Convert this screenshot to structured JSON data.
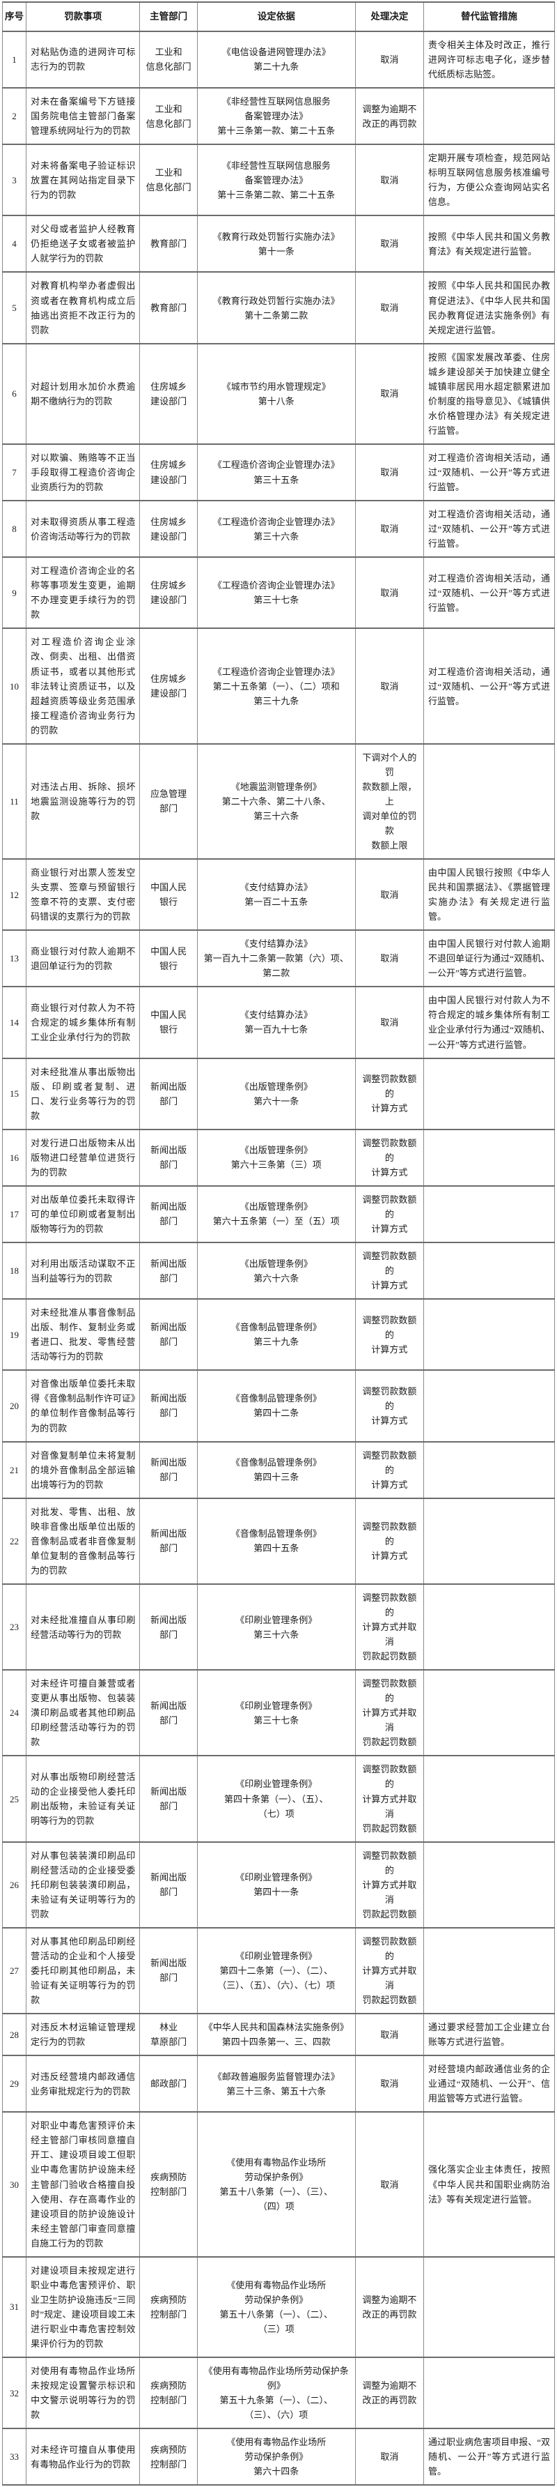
{
  "table": {
    "headers": [
      "序号",
      "罚款事项",
      "主管部门",
      "设定依据",
      "处理决定",
      "替代监管措施"
    ],
    "rows": [
      {
        "no": "1",
        "item": "对粘贴伪造的进网许可标志行为的罚款",
        "dept": "工业和\n信息化部门",
        "basis": "《电信设备进网管理办法》\n第二十九条",
        "decision": "取消",
        "measure": "责令相关主体及时改正，推行进网许可标志电子化，逐步替代纸质标志贴签。"
      },
      {
        "no": "2",
        "item": "对未在备案编号下方链接国务院电信主管部门备案管理系统网址行为的罚款",
        "dept": "工业和\n信息化部门",
        "basis": "《非经营性互联网信息服务\n备案管理办法》\n第十三条第一款、第二十五条",
        "decision": "调整为逾期不\n改正的再罚款",
        "measure": ""
      },
      {
        "no": "3",
        "item": "对未将备案电子验证标识放置在其网站指定目录下行为的罚款",
        "dept": "工业和\n信息化部门",
        "basis": "《非经营性互联网信息服务\n备案管理办法》\n第十三条第二款、第二十五条",
        "decision": "取消",
        "measure": "定期开展专项检查，规范网站标明互联网信息服务核准编号行为，方便公众查询网站实名信息。"
      },
      {
        "no": "4",
        "item": "对父母或者监护人经教育仍拒绝送子女或者被监护人就学行为的罚款",
        "dept": "教育部门",
        "basis": "《教育行政处罚暂行实施办法》\n第十一条",
        "decision": "取消",
        "measure": "按照《中华人民共和国义务教育法》有关规定进行监管。"
      },
      {
        "no": "5",
        "item": "对教育机构举办者虚假出资或者在教育机构成立后抽逃出资拒不改正行为的罚款",
        "dept": "教育部门",
        "basis": "《教育行政处罚暂行实施办法》\n第十二条第二款",
        "decision": "取消",
        "measure": "按照《中华人民共和国民办教育促进法》、《中华人民共和国民办教育促进法实施条例》有关规定进行监管。"
      },
      {
        "no": "6",
        "item": "对超计划用水加价水费逾期不缴纳行为的罚款",
        "dept": "住房城乡\n建设部门",
        "basis": "《城市节约用水管理规定》\n第十八条",
        "decision": "取消",
        "measure": "按照《国家发展改革委、住房城乡建设部关于加快建立健全城镇非居民用水超定额累进加价制度的指导意见》、《城镇供水价格管理办法》有关规定进行监管。"
      },
      {
        "no": "7",
        "item": "对以欺骗、贿赂等不正当手段取得工程造价咨询企业资质行为的罚款",
        "dept": "住房城乡\n建设部门",
        "basis": "《工程造价咨询企业管理办法》\n第三十五条",
        "decision": "取消",
        "measure": "对工程造价咨询相关活动，通过“双随机、一公开”等方式进行监管。"
      },
      {
        "no": "8",
        "item": "对未取得资质从事工程造价咨询活动等行为的罚款",
        "dept": "住房城乡\n建设部门",
        "basis": "《工程造价咨询企业管理办法》\n第三十六条",
        "decision": "取消",
        "measure": "对工程造价咨询相关活动，通过“双随机、一公开”等方式进行监管。"
      },
      {
        "no": "9",
        "item": "对工程造价咨询企业的名称等事项发生变更，逾期不办理变更手续行为的罚款",
        "dept": "住房城乡\n建设部门",
        "basis": "《工程造价咨询企业管理办法》\n第三十七条",
        "decision": "取消",
        "measure": "对工程造价咨询相关活动，通过“双随机、一公开”等方式进行监管。"
      },
      {
        "no": "10",
        "item": "对工程造价咨询企业涂改、倒卖、出租、出借资质证书，或者以其他形式非法转让资质证书，以及超越资质等级业务范围承接工程造价咨询业务行为的罚款",
        "dept": "住房城乡\n建设部门",
        "basis": "《工程造价咨询企业管理办法》\n第二十五条第（一）、（二）项和\n第三十九条",
        "decision": "取消",
        "measure": "对工程造价咨询相关活动，通过“双随机、一公开”等方式进行监管。"
      },
      {
        "no": "11",
        "item": "对违法占用、拆除、损坏地震监测设施等行为的罚款",
        "dept": "应急管理\n部门",
        "basis": "《地震监测管理条例》\n第二十六条、第二十八条、\n第三十六条",
        "decision": "下调对个人的罚\n款数额上限，上\n调对单位的罚款\n数额上限",
        "measure": ""
      },
      {
        "no": "12",
        "item": "商业银行对出票人签发空头支票、签章与预留银行签章不符的支票、支付密码错误的支票行为的罚款",
        "dept": "中国人民\n银行",
        "basis": "《支付结算办法》\n第一百二十五条",
        "decision": "取消",
        "measure": "由中国人民银行按照《中华人民共和国票据法》、《票据管理实施办法》有关规定进行监管。"
      },
      {
        "no": "13",
        "item": "商业银行对付款人逾期不退回单证行为的罚款",
        "dept": "中国人民\n银行",
        "basis": "《支付结算办法》\n第一百九十二条第一款第（六）项、\n第二款",
        "decision": "取消",
        "measure": "由中国人民银行对付款人逾期不退回单证行为通过“双随机、一公开”等方式进行监管。"
      },
      {
        "no": "14",
        "item": "商业银行对付款人为不符合规定的城乡集体所有制工业企业承付行为的罚款",
        "dept": "中国人民\n银行",
        "basis": "《支付结算办法》\n第一百九十七条",
        "decision": "取消",
        "measure": "由中国人民银行对付款人为不符合规定的城乡集体所有制工业企业承付行为通过“双随机、一公开”等方式进行监管。"
      },
      {
        "no": "15",
        "item": "对未经批准从事出版物出版、印刷或者复制、进口、发行业务等行为的罚款",
        "dept": "新闻出版\n部门",
        "basis": "《出版管理条例》\n第六十一条",
        "decision": "调整罚款数额的\n计算方式",
        "measure": ""
      },
      {
        "no": "16",
        "item": "对发行进口出版物未从出版物进口经营单位进货行为的罚款",
        "dept": "新闻出版\n部门",
        "basis": "《出版管理条例》\n第六十三条第（三）项",
        "decision": "调整罚款数额的\n计算方式",
        "measure": ""
      },
      {
        "no": "17",
        "item": "对出版单位委托未取得许可的单位印刷或者复制出版物等行为的罚款",
        "dept": "新闻出版\n部门",
        "basis": "《出版管理条例》\n第六十五条第（一）至（五）项",
        "decision": "调整罚款数额的\n计算方式",
        "measure": ""
      },
      {
        "no": "18",
        "item": "对利用出版活动谋取不正当利益等行为的罚款",
        "dept": "新闻出版\n部门",
        "basis": "《出版管理条例》\n第六十六条",
        "decision": "调整罚款数额的\n计算方式",
        "measure": ""
      },
      {
        "no": "19",
        "item": "对未经批准从事音像制品出版、制作、复制业务或者进口、批发、零售经营活动等行为的罚款",
        "dept": "新闻出版\n部门",
        "basis": "《音像制品管理条例》\n第三十九条",
        "decision": "调整罚款数额的\n计算方式",
        "measure": ""
      },
      {
        "no": "20",
        "item": "对音像出版单位委托未取得《音像制品制作许可证》的单位制作音像制品等行为的罚款",
        "dept": "新闻出版\n部门",
        "basis": "《音像制品管理条例》\n第四十二条",
        "decision": "调整罚款数额的\n计算方式",
        "measure": ""
      },
      {
        "no": "21",
        "item": "对音像复制单位未将复制的境外音像制品全部运输出境等行为的罚款",
        "dept": "新闻出版\n部门",
        "basis": "《音像制品管理条例》\n第四十三条",
        "decision": "调整罚款数额的\n计算方式",
        "measure": ""
      },
      {
        "no": "22",
        "item": "对批发、零售、出租、放映非音像出版单位出版的音像制品或者非音像复制单位复制的音像制品等行为的罚款",
        "dept": "新闻出版\n部门",
        "basis": "《音像制品管理条例》\n第四十五条",
        "decision": "调整罚款数额的\n计算方式",
        "measure": ""
      },
      {
        "no": "23",
        "item": "对未经批准擅自从事印刷经营活动等行为的罚款",
        "dept": "新闻出版\n部门",
        "basis": "《印刷业管理条例》\n第三十六条",
        "decision": "调整罚款数额的\n计算方式并取消\n罚款起罚数额",
        "measure": ""
      },
      {
        "no": "24",
        "item": "对未经许可擅自兼营或者变更从事出版物、包装装潢印刷品或者其他印刷品印刷经营活动等行为的罚款",
        "dept": "新闻出版\n部门",
        "basis": "《印刷业管理条例》\n第三十七条",
        "decision": "调整罚款数额的\n计算方式并取消\n罚款起罚数额",
        "measure": ""
      },
      {
        "no": "25",
        "item": "对从事出版物印刷经营活动的企业接受他人委托印刷出版物，未验证有关证明等行为的罚款",
        "dept": "新闻出版\n部门",
        "basis": "《印刷业管理条例》\n第四十条第（一）、（五）、\n（七）项",
        "decision": "调整罚款数额的\n计算方式并取消\n罚款起罚数额",
        "measure": ""
      },
      {
        "no": "26",
        "item": "对从事包装装潢印刷品印刷经营活动的企业接受委托印刷包装装潢印刷品，未验证有关证明等行为的罚款",
        "dept": "新闻出版\n部门",
        "basis": "《印刷业管理条例》\n第四十一条",
        "decision": "调整罚款数额的\n计算方式并取消\n罚款起罚数额",
        "measure": ""
      },
      {
        "no": "27",
        "item": "对从事其他印刷品印刷经营活动的企业和个人接受委托印刷其他印刷品，未验证有关证明等行为的罚款",
        "dept": "新闻出版\n部门",
        "basis": "《印刷业管理条例》\n第四十二条第（一）、（二）、\n（三）、（五）、（六）、（七）项",
        "decision": "调整罚款数额的\n计算方式并取消\n罚款起罚数额",
        "measure": ""
      },
      {
        "no": "28",
        "item": "对违反木材运输证管理规定行为的罚款",
        "dept": "林业\n草原部门",
        "basis": "《中华人民共和国森林法实施条例》\n第四十四条第一、三、四款",
        "decision": "取消",
        "measure": "通过要求经营加工企业建立台账等方式进行监管。"
      },
      {
        "no": "29",
        "item": "对违反经营境内邮政通信业务审批规定行为的罚款",
        "dept": "邮政部门",
        "basis": "《邮政普遍服务监督管理办法》\n第三十三条、第五十六条",
        "decision": "取消",
        "measure": "对经营境内邮政通信业务的企业通过“双随机、一公开”、信用监管等方式进行监管。"
      },
      {
        "no": "30",
        "item": "对职业中毒危害预评价未经主管部门审核同意擅自开工、建设项目竣工但职业中毒危害防护设施未经主管部门验收合格擅自投入使用、存在高毒作业的建设项目的防护设施设计未经主管部门审查同意擅自施工行为的罚款",
        "dept": "疾病预防\n控制部门",
        "basis": "《使用有毒物品作业场所\n劳动保护条例》\n第五十八条第（一）、（三）、\n（四）项",
        "decision": "取消",
        "measure": "强化落实企业主体责任，按照《中华人民共和国职业病防治法》等有关规定进行监管。"
      },
      {
        "no": "31",
        "item": "对建设项目未按规定进行职业中毒危害预评价、职业卫生防护设施违反“三同时”规定、建设项目竣工未进行职业中毒危害控制效果评价行为的罚款",
        "dept": "疾病预防\n控制部门",
        "basis": "《使用有毒物品作业场所\n劳动保护条例》\n第五十八条第（一）、（二）、\n（三）项",
        "decision": "调整为逾期不\n改正的再罚款",
        "measure": ""
      },
      {
        "no": "32",
        "item": "对使用有毒物品作业场所未按规定设置警示标识和中文警示说明等行为的罚款",
        "dept": "疾病预防\n控制部门",
        "basis": "《使用有毒物品作业场所劳动保护条例》\n第五十九条第（一）、（二）、\n（三）、（六）项",
        "decision": "调整为逾期不\n改正的再罚款",
        "measure": ""
      },
      {
        "no": "33",
        "item": "对未经许可擅自从事使用有毒物品作业行为的罚款",
        "dept": "疾病预防\n控制部门",
        "basis": "《使用有毒物品作业场所\n劳动保护条例》\n第六十四条",
        "decision": "取消",
        "measure": "通过职业病危害项目申报、“双随机、一公开”等方式进行监管。"
      }
    ]
  }
}
